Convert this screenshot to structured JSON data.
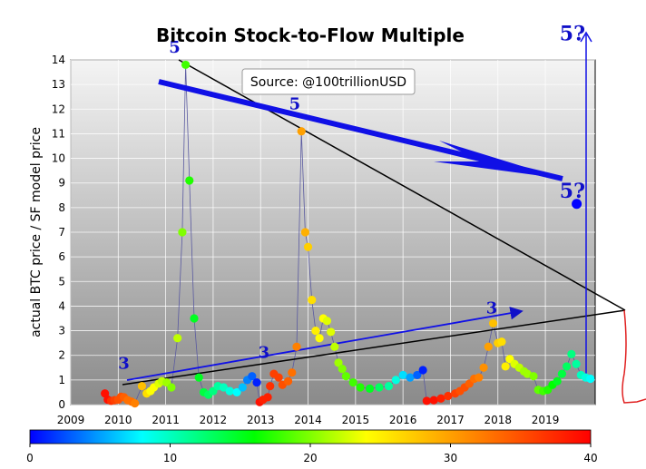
{
  "chart_data": {
    "type": "scatter",
    "title": "Bitcoin Stock-to-Flow Multiple",
    "ylabel": "actual BTC price / SF model price",
    "xlabel": "",
    "source": "Source: @100trillionUSD",
    "xlim": [
      2009,
      2020.05
    ],
    "ylim": [
      0,
      14
    ],
    "x_ticks": [
      "2009",
      "2010",
      "2011",
      "2012",
      "2013",
      "2014",
      "2015",
      "2016",
      "2017",
      "2018",
      "2019"
    ],
    "y_ticks": [
      "0",
      "1",
      "2",
      "3",
      "4",
      "5",
      "6",
      "7",
      "8",
      "9",
      "10",
      "11",
      "12",
      "13",
      "14"
    ],
    "grid": true,
    "colorbar": {
      "min": 0,
      "max": 40,
      "ticks": [
        "0",
        "10",
        "20",
        "30",
        "40"
      ],
      "colors": [
        "#0000ff",
        "#00ffff",
        "#00ff00",
        "#ffff00",
        "#ff8000",
        "#ff0000"
      ]
    },
    "points": [
      {
        "x": 2009.72,
        "y": 0.45,
        "c": 39
      },
      {
        "x": 2009.78,
        "y": 0.2,
        "c": 39
      },
      {
        "x": 2009.85,
        "y": 0.15,
        "c": 37
      },
      {
        "x": 2009.92,
        "y": 0.18,
        "c": 36
      },
      {
        "x": 2010.0,
        "y": 0.2,
        "c": 35
      },
      {
        "x": 2010.06,
        "y": 0.32,
        "c": 35
      },
      {
        "x": 2010.12,
        "y": 0.3,
        "c": 34
      },
      {
        "x": 2010.2,
        "y": 0.18,
        "c": 33
      },
      {
        "x": 2010.28,
        "y": 0.12,
        "c": 33
      },
      {
        "x": 2010.35,
        "y": 0.05,
        "c": 32
      },
      {
        "x": 2010.5,
        "y": 0.75,
        "c": 28
      },
      {
        "x": 2010.6,
        "y": 0.45,
        "c": 26
      },
      {
        "x": 2010.68,
        "y": 0.55,
        "c": 24
      },
      {
        "x": 2010.75,
        "y": 0.7,
        "c": 24
      },
      {
        "x": 2010.85,
        "y": 0.85,
        "c": 23
      },
      {
        "x": 2010.92,
        "y": 0.95,
        "c": 22
      },
      {
        "x": 2011.02,
        "y": 0.9,
        "c": 21
      },
      {
        "x": 2011.12,
        "y": 0.7,
        "c": 20
      },
      {
        "x": 2011.25,
        "y": 2.7,
        "c": 22
      },
      {
        "x": 2011.35,
        "y": 7.0,
        "c": 20
      },
      {
        "x": 2011.42,
        "y": 13.8,
        "c": 18
      },
      {
        "x": 2011.5,
        "y": 9.1,
        "c": 17
      },
      {
        "x": 2011.6,
        "y": 3.5,
        "c": 15
      },
      {
        "x": 2011.7,
        "y": 1.1,
        "c": 15
      },
      {
        "x": 2011.8,
        "y": 0.5,
        "c": 14
      },
      {
        "x": 2011.9,
        "y": 0.4,
        "c": 13
      },
      {
        "x": 2012.0,
        "y": 0.55,
        "c": 12
      },
      {
        "x": 2012.1,
        "y": 0.75,
        "c": 11
      },
      {
        "x": 2012.22,
        "y": 0.7,
        "c": 10
      },
      {
        "x": 2012.35,
        "y": 0.55,
        "c": 9
      },
      {
        "x": 2012.5,
        "y": 0.5,
        "c": 8
      },
      {
        "x": 2012.62,
        "y": 0.7,
        "c": 6
      },
      {
        "x": 2012.72,
        "y": 1.0,
        "c": 4
      },
      {
        "x": 2012.82,
        "y": 1.15,
        "c": 3
      },
      {
        "x": 2012.92,
        "y": 0.9,
        "c": 1
      },
      {
        "x": 2012.98,
        "y": 0.1,
        "c": 39
      },
      {
        "x": 2013.05,
        "y": 0.2,
        "c": 38
      },
      {
        "x": 2013.15,
        "y": 0.3,
        "c": 38
      },
      {
        "x": 2013.2,
        "y": 0.75,
        "c": 37
      },
      {
        "x": 2013.28,
        "y": 1.25,
        "c": 36
      },
      {
        "x": 2013.38,
        "y": 1.1,
        "c": 36
      },
      {
        "x": 2013.46,
        "y": 0.8,
        "c": 35
      },
      {
        "x": 2013.58,
        "y": 0.95,
        "c": 34
      },
      {
        "x": 2013.66,
        "y": 1.3,
        "c": 33
      },
      {
        "x": 2013.76,
        "y": 2.35,
        "c": 32
      },
      {
        "x": 2013.86,
        "y": 11.1,
        "c": 30
      },
      {
        "x": 2013.94,
        "y": 7.0,
        "c": 29
      },
      {
        "x": 2014.0,
        "y": 6.4,
        "c": 27
      },
      {
        "x": 2014.08,
        "y": 4.25,
        "c": 26
      },
      {
        "x": 2014.16,
        "y": 3.0,
        "c": 25
      },
      {
        "x": 2014.24,
        "y": 2.7,
        "c": 24
      },
      {
        "x": 2014.32,
        "y": 3.5,
        "c": 24
      },
      {
        "x": 2014.4,
        "y": 3.4,
        "c": 23
      },
      {
        "x": 2014.48,
        "y": 2.95,
        "c": 23
      },
      {
        "x": 2014.56,
        "y": 2.35,
        "c": 22
      },
      {
        "x": 2014.64,
        "y": 1.7,
        "c": 21
      },
      {
        "x": 2014.72,
        "y": 1.45,
        "c": 20
      },
      {
        "x": 2014.8,
        "y": 1.15,
        "c": 19
      },
      {
        "x": 2014.95,
        "y": 0.9,
        "c": 18
      },
      {
        "x": 2015.1,
        "y": 0.7,
        "c": 17
      },
      {
        "x": 2015.3,
        "y": 0.65,
        "c": 15
      },
      {
        "x": 2015.5,
        "y": 0.7,
        "c": 13
      },
      {
        "x": 2015.7,
        "y": 0.75,
        "c": 11
      },
      {
        "x": 2015.85,
        "y": 1.0,
        "c": 9
      },
      {
        "x": 2016.0,
        "y": 1.2,
        "c": 7
      },
      {
        "x": 2016.15,
        "y": 1.1,
        "c": 5
      },
      {
        "x": 2016.3,
        "y": 1.2,
        "c": 3
      },
      {
        "x": 2016.42,
        "y": 1.4,
        "c": 1
      },
      {
        "x": 2016.5,
        "y": 0.15,
        "c": 39
      },
      {
        "x": 2016.65,
        "y": 0.18,
        "c": 39
      },
      {
        "x": 2016.8,
        "y": 0.25,
        "c": 38
      },
      {
        "x": 2016.95,
        "y": 0.35,
        "c": 37
      },
      {
        "x": 2017.1,
        "y": 0.45,
        "c": 36
      },
      {
        "x": 2017.2,
        "y": 0.55,
        "c": 35
      },
      {
        "x": 2017.3,
        "y": 0.7,
        "c": 35
      },
      {
        "x": 2017.4,
        "y": 0.85,
        "c": 34
      },
      {
        "x": 2017.5,
        "y": 1.05,
        "c": 33
      },
      {
        "x": 2017.6,
        "y": 1.1,
        "c": 32
      },
      {
        "x": 2017.7,
        "y": 1.5,
        "c": 31
      },
      {
        "x": 2017.8,
        "y": 2.35,
        "c": 30
      },
      {
        "x": 2017.9,
        "y": 3.3,
        "c": 28
      },
      {
        "x": 2018.0,
        "y": 2.5,
        "c": 27
      },
      {
        "x": 2018.08,
        "y": 2.55,
        "c": 26
      },
      {
        "x": 2018.16,
        "y": 1.55,
        "c": 25
      },
      {
        "x": 2018.25,
        "y": 1.85,
        "c": 24
      },
      {
        "x": 2018.35,
        "y": 1.65,
        "c": 23
      },
      {
        "x": 2018.45,
        "y": 1.5,
        "c": 22
      },
      {
        "x": 2018.55,
        "y": 1.35,
        "c": 21
      },
      {
        "x": 2018.62,
        "y": 1.25,
        "c": 21
      },
      {
        "x": 2018.75,
        "y": 1.15,
        "c": 20
      },
      {
        "x": 2018.85,
        "y": 0.6,
        "c": 19
      },
      {
        "x": 2018.95,
        "y": 0.55,
        "c": 18
      },
      {
        "x": 2019.05,
        "y": 0.6,
        "c": 17
      },
      {
        "x": 2019.15,
        "y": 0.8,
        "c": 16
      },
      {
        "x": 2019.25,
        "y": 0.95,
        "c": 15
      },
      {
        "x": 2019.35,
        "y": 1.25,
        "c": 14
      },
      {
        "x": 2019.45,
        "y": 1.55,
        "c": 13
      },
      {
        "x": 2019.55,
        "y": 2.05,
        "c": 12
      },
      {
        "x": 2019.65,
        "y": 1.65,
        "c": 11
      },
      {
        "x": 2019.75,
        "y": 1.2,
        "c": 10
      },
      {
        "x": 2019.85,
        "y": 1.1,
        "c": 9
      },
      {
        "x": 2019.95,
        "y": 1.05,
        "c": 8
      },
      {
        "x": 2019.66,
        "y": 8.15,
        "c": 0
      }
    ],
    "annotations": [
      {
        "text": "5",
        "x": 2011.07,
        "y": 14.3,
        "size": 18
      },
      {
        "text": "5",
        "x": 2013.6,
        "y": 12.0,
        "size": 18
      },
      {
        "text": "5?",
        "x": 2019.3,
        "y": 8.4,
        "size": 22
      },
      {
        "text": "5?",
        "x": 2019.3,
        "y": 14.8,
        "size": 22
      },
      {
        "text": "3",
        "x": 2010.0,
        "y": 1.45,
        "size": 18
      },
      {
        "text": "3",
        "x": 2012.95,
        "y": 1.9,
        "size": 18
      },
      {
        "text": "3",
        "x": 2017.75,
        "y": 3.7,
        "size": 18
      }
    ]
  }
}
